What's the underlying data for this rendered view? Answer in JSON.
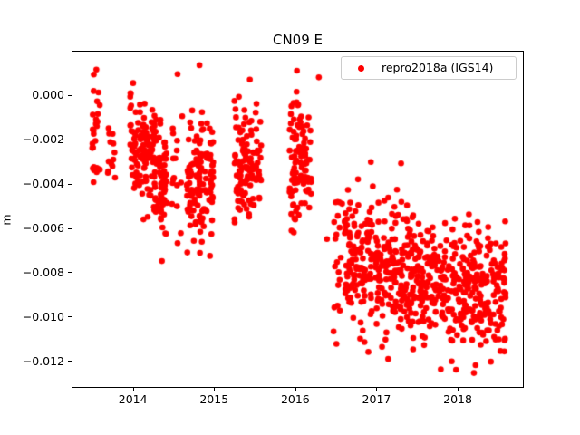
{
  "window": {
    "background": "#ffffff"
  },
  "title": "CN09 E",
  "axis": {
    "ylabel": "m"
  },
  "legend": {
    "label": "repro2018a (IGS14)",
    "marker_color": "#ff0000"
  },
  "chart_data": {
    "type": "scatter",
    "title": "CN09 E",
    "xlabel": "",
    "ylabel": "m",
    "grid": false,
    "legend_position": "upper right",
    "legend_entries": [
      "repro2018a (IGS14)"
    ],
    "marker": {
      "shape": "circle",
      "color": "#ff0000",
      "radius_px": 3.3
    },
    "xlim": [
      2013.256,
      2018.803
    ],
    "ylim": [
      -0.01318,
      0.00196
    ],
    "xticks": {
      "values": [
        2014,
        2015,
        2016,
        2017,
        2018
      ],
      "labels": [
        "2014",
        "2015",
        "2016",
        "2017",
        "2018"
      ]
    },
    "yticks": {
      "values": [
        0.0,
        -0.002,
        -0.004,
        -0.006,
        -0.008,
        -0.01,
        -0.012
      ],
      "labels": [
        "0.000",
        "−0.002",
        "−0.004",
        "−0.006",
        "−0.008",
        "−0.010",
        "−0.012"
      ]
    },
    "series": [
      {
        "name": "repro2018a (IGS14)",
        "color": "#ff0000",
        "seed": 1337,
        "clusters": [
          {
            "x_start": 2013.48,
            "x_end": 2013.62,
            "n": 26,
            "y_mean_start": -0.0019,
            "y_mean_end": -0.0019,
            "y_std": 0.0015,
            "y_min": -0.0046,
            "y_max": 0.00115
          },
          {
            "x_start": 2013.69,
            "x_end": 2013.79,
            "n": 13,
            "y_mean_start": -0.0024,
            "y_mean_end": -0.0024,
            "y_std": 0.0012,
            "y_min": -0.0044,
            "y_max": -0.0003
          },
          {
            "x_start": 2013.96,
            "x_end": 2014.42,
            "n": 185,
            "y_mean_start": -0.002,
            "y_mean_end": -0.004,
            "y_std": 0.0013,
            "y_min": -0.0076,
            "y_max": 0.0007
          },
          {
            "x_start": 2014.46,
            "x_end": 2014.63,
            "n": 16,
            "y_mean_start": -0.0042,
            "y_mean_end": -0.0042,
            "y_std": 0.0025,
            "y_min": -0.0085,
            "y_max": 0.001
          },
          {
            "x_start": 2014.66,
            "x_end": 2014.99,
            "n": 130,
            "y_mean_start": -0.0039,
            "y_mean_end": -0.0041,
            "y_std": 0.0014,
            "y_min": -0.0086,
            "y_max": 0.0
          },
          {
            "x_start": 2015.25,
            "x_end": 2015.58,
            "n": 115,
            "y_mean_start": -0.0032,
            "y_mean_end": -0.0032,
            "y_std": 0.0012,
            "y_min": -0.0068,
            "y_max": 0.0007
          },
          {
            "x_start": 2015.93,
            "x_end": 2016.2,
            "n": 105,
            "y_mean_start": -0.0031,
            "y_mean_end": -0.0033,
            "y_std": 0.0014,
            "y_min": -0.0079,
            "y_max": 0.0011
          },
          {
            "x_start": 2016.47,
            "x_end": 2016.58,
            "n": 20,
            "y_mean_start": -0.0063,
            "y_mean_end": -0.0063,
            "y_std": 0.0022,
            "y_min": -0.0116,
            "y_max": -0.0027
          },
          {
            "x_start": 2016.6,
            "x_end": 2017.4,
            "n": 270,
            "y_mean_start": -0.0074,
            "y_mean_end": -0.0078,
            "y_std": 0.00155,
            "y_min": -0.0122,
            "y_max": -0.0028
          },
          {
            "x_start": 2017.4,
            "x_end": 2018.59,
            "n": 390,
            "y_mean_start": -0.0082,
            "y_mean_end": -0.0088,
            "y_std": 0.00135,
            "y_min": -0.0126,
            "y_max": -0.0038
          }
        ],
        "extra_points": [
          [
            2013.55,
            0.00115
          ],
          [
            2014.55,
            0.00095
          ],
          [
            2014.82,
            0.00135
          ],
          [
            2015.44,
            0.0007
          ],
          [
            2016.02,
            0.0011
          ],
          [
            2016.29,
            0.0008
          ],
          [
            2016.39,
            -0.0065
          ],
          [
            2016.9,
            -0.0116
          ],
          [
            2017.98,
            -0.0124
          ],
          [
            2018.2,
            -0.01255
          ],
          [
            2018.22,
            -0.0122
          ]
        ]
      }
    ]
  }
}
